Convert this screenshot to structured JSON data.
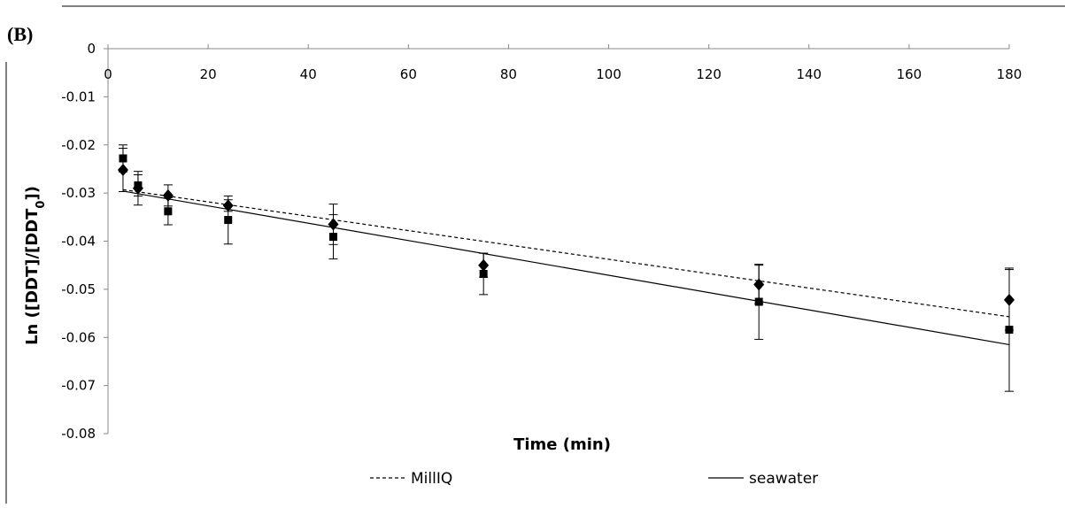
{
  "panel_label": "(B)",
  "chart_data": {
    "type": "scatter",
    "title": "",
    "xlabel": "Time (min)",
    "ylabel": "Ln ([DDT]/[DDT0])",
    "ylabel_parts": {
      "main": "Ln ([DDT]/[DDT",
      "sub": "0",
      "end": "])"
    },
    "xlim": [
      0,
      180
    ],
    "ylim": [
      -0.08,
      0
    ],
    "x_ticks": [
      0,
      20,
      40,
      60,
      80,
      100,
      120,
      140,
      160,
      180
    ],
    "y_ticks": [
      0,
      -0.01,
      -0.02,
      -0.03,
      -0.04,
      -0.05,
      -0.06,
      -0.07,
      -0.08
    ],
    "x_tick_labels": [
      "0",
      "20",
      "40",
      "60",
      "80",
      "100",
      "120",
      "140",
      "160",
      "180"
    ],
    "y_tick_labels": [
      "0",
      "-0.01",
      "-0.02",
      "-0.03",
      "-0.04",
      "-0.05",
      "-0.06",
      "-0.07",
      "-0.08"
    ],
    "grid": false,
    "legend_position": "bottom",
    "legend": [
      {
        "label": "MillIQ",
        "line_style": "dashed"
      },
      {
        "label": "seawater",
        "line_style": "solid"
      }
    ],
    "series": [
      {
        "marker": "diamond",
        "x": [
          3,
          6,
          12,
          24,
          45,
          75,
          130,
          180
        ],
        "y": [
          -0.0252,
          -0.029,
          -0.0305,
          -0.0326,
          -0.0365,
          -0.045,
          -0.049,
          -0.0522
        ],
        "yerr": [
          0.0045,
          0.0035,
          0.0022,
          0.0012,
          0.0042,
          0.0025,
          0.004,
          0.0063
        ]
      },
      {
        "marker": "square",
        "x": [
          3,
          6,
          12,
          24,
          45,
          75,
          130,
          180
        ],
        "y": [
          -0.0228,
          -0.0284,
          -0.0338,
          -0.0356,
          -0.0391,
          -0.0468,
          -0.0526,
          -0.0584
        ],
        "yerr": [
          0.0028,
          0.0022,
          0.0028,
          0.005,
          0.0046,
          0.0043,
          0.0078,
          0.0128
        ]
      }
    ],
    "trendlines": [
      {
        "name": "MillIQ",
        "line_style": "dashed",
        "x": [
          3,
          180
        ],
        "y": [
          -0.0293,
          -0.0557
        ]
      },
      {
        "name": "seawater",
        "line_style": "solid",
        "x": [
          3,
          180
        ],
        "y": [
          -0.0296,
          -0.0615
        ]
      }
    ],
    "colors": {
      "ink": "#000000",
      "frame": "#808080",
      "axis": "#888888"
    }
  }
}
